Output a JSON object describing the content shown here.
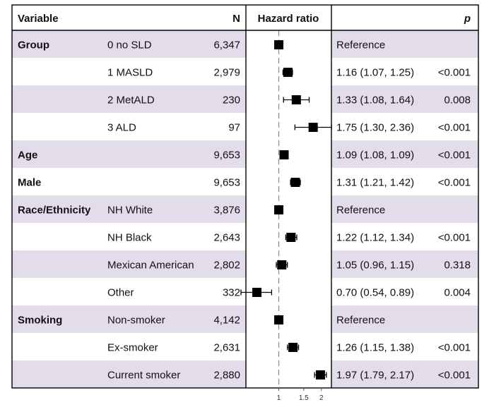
{
  "headers": {
    "variable": "Variable",
    "n": "N",
    "hr": "Hazard ratio",
    "p": "p"
  },
  "colors": {
    "stripe": "#e3dcea",
    "marker": "#000000",
    "reference_line": "#888888",
    "border": "#000000"
  },
  "chart_data": {
    "type": "forest",
    "x_scale": "log",
    "reference_value": 1,
    "xlim": [
      0.62,
      2.25
    ],
    "xticks": [
      {
        "value": 1,
        "label": "1"
      },
      {
        "value": 1.5,
        "label": "1.5"
      },
      {
        "value": 2,
        "label": "2"
      }
    ],
    "rows": [
      {
        "variable": "Group",
        "level": "0 no SLD",
        "n": "6,347",
        "hr": 1.0,
        "lo": null,
        "hi": null,
        "ci_text": "Reference",
        "p": "",
        "shaded": true
      },
      {
        "variable": "",
        "level": "1 MASLD",
        "n": "2,979",
        "hr": 1.16,
        "lo": 1.07,
        "hi": 1.25,
        "ci_text": "1.16 (1.07, 1.25)",
        "p": "<0.001",
        "shaded": false
      },
      {
        "variable": "",
        "level": "2 MetALD",
        "n": "230",
        "hr": 1.33,
        "lo": 1.08,
        "hi": 1.64,
        "ci_text": "1.33 (1.08, 1.64)",
        "p": "0.008",
        "shaded": true
      },
      {
        "variable": "",
        "level": "3 ALD",
        "n": "97",
        "hr": 1.75,
        "lo": 1.3,
        "hi": 2.36,
        "ci_text": "1.75 (1.30, 2.36)",
        "p": "<0.001",
        "shaded": false
      },
      {
        "variable": "Age",
        "level": "",
        "n": "9,653",
        "hr": 1.09,
        "lo": 1.08,
        "hi": 1.09,
        "ci_text": "1.09 (1.08, 1.09)",
        "p": "<0.001",
        "shaded": true
      },
      {
        "variable": "Male",
        "level": "",
        "n": "9,653",
        "hr": 1.31,
        "lo": 1.21,
        "hi": 1.42,
        "ci_text": "1.31 (1.21, 1.42)",
        "p": "<0.001",
        "shaded": false
      },
      {
        "variable": "Race/Ethnicity",
        "level": "NH White",
        "n": "3,876",
        "hr": 1.0,
        "lo": null,
        "hi": null,
        "ci_text": "Reference",
        "p": "",
        "shaded": true
      },
      {
        "variable": "",
        "level": "NH Black",
        "n": "2,643",
        "hr": 1.22,
        "lo": 1.12,
        "hi": 1.34,
        "ci_text": "1.22 (1.12, 1.34)",
        "p": "<0.001",
        "shaded": false
      },
      {
        "variable": "",
        "level": "Mexican American",
        "n": "2,802",
        "hr": 1.05,
        "lo": 0.96,
        "hi": 1.15,
        "ci_text": "1.05 (0.96, 1.15)",
        "p": "0.318",
        "shaded": true
      },
      {
        "variable": "",
        "level": "Other",
        "n": "332",
        "hr": 0.7,
        "lo": 0.54,
        "hi": 0.89,
        "ci_text": "0.70 (0.54, 0.89)",
        "p": "0.004",
        "shaded": false
      },
      {
        "variable": "Smoking",
        "level": "Non-smoker",
        "n": "4,142",
        "hr": 1.0,
        "lo": null,
        "hi": null,
        "ci_text": "Reference",
        "p": "",
        "shaded": true
      },
      {
        "variable": "",
        "level": "Ex-smoker",
        "n": "2,631",
        "hr": 1.26,
        "lo": 1.15,
        "hi": 1.38,
        "ci_text": "1.26 (1.15, 1.38)",
        "p": "<0.001",
        "shaded": false
      },
      {
        "variable": "",
        "level": "Current smoker",
        "n": "2,880",
        "hr": 1.97,
        "lo": 1.79,
        "hi": 2.17,
        "ci_text": "1.97 (1.79, 2.17)",
        "p": "<0.001",
        "shaded": true
      }
    ]
  }
}
